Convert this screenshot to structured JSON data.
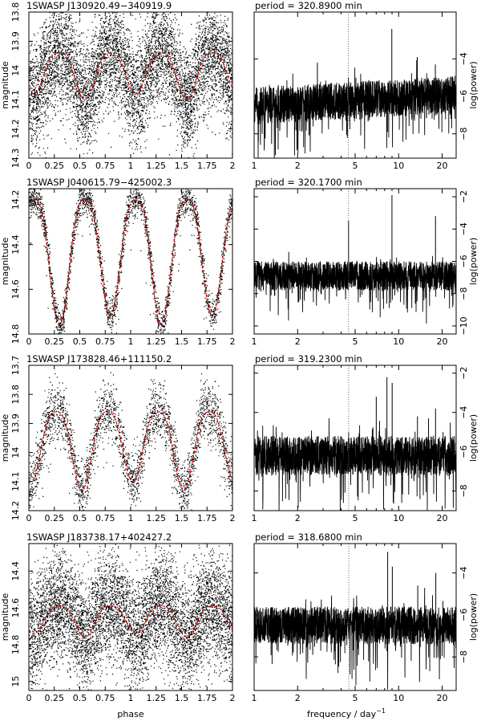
{
  "figure": {
    "xlabel_left": "phase",
    "xlabel_right": "frequency / day",
    "xlabel_right_exp": "−1"
  },
  "colors": {
    "points": "#000000",
    "model_curve": "#cc0000",
    "dotted_line": "#666666"
  },
  "chart_data": [
    {
      "type": "scatter",
      "title": "1SWASP J130920.49−340919.9",
      "xlabel": "",
      "ylabel": "magnitude",
      "xlim": [
        0,
        2
      ],
      "ylim": [
        14.3,
        13.8
      ],
      "y_inverted": true,
      "x_ticks": [
        "0",
        "0.25",
        "0.5",
        "0.75",
        "1",
        "1.25",
        "1.5",
        "1.75",
        "2"
      ],
      "y_ticks": [
        "13.8",
        "13.9",
        "14",
        "14.1",
        "14.2",
        "14.3"
      ],
      "series": [
        {
          "kind": "points",
          "density": "very high",
          "scatter_magnitude": 0.09
        },
        {
          "kind": "model",
          "style": "red dashed",
          "primary_minimum_phase": 0.55,
          "maxima_magnitude": 13.94,
          "primary_min_magnitude": 14.1,
          "secondary_min_magnitude": 14.08
        }
      ]
    },
    {
      "type": "line",
      "title": "period = 320.8900 min",
      "xlabel": "",
      "ylabel": "log(power)",
      "x_scale": "log",
      "xlim": [
        1,
        25
      ],
      "ylim": [
        -9.3,
        -1.5
      ],
      "x_ticks": [
        "1",
        "2",
        "5",
        "10",
        "20"
      ],
      "y_ticks": [
        "-4",
        "-6",
        "-8"
      ],
      "dotted_line_frequency": 4.49,
      "spikes": [
        {
          "frequency": 4.49,
          "log_power": -5.0
        },
        {
          "frequency": 8.97,
          "log_power": -2.4
        },
        {
          "frequency": 13.46,
          "log_power": -3.9
        },
        {
          "frequency": 17.95,
          "log_power": -4.3
        },
        {
          "frequency": 2.74,
          "log_power": -4.2
        }
      ],
      "noise": {
        "mean_log_power": -6.2,
        "spread": 1.0,
        "trend": "rises slightly toward high frequency"
      }
    },
    {
      "type": "scatter",
      "title": "1SWASP J040615.79−425002.3",
      "xlabel": "",
      "ylabel": "magnitude",
      "xlim": [
        0,
        2
      ],
      "ylim": [
        14.8,
        14.15
      ],
      "y_inverted": true,
      "x_ticks": [
        "0",
        "0.25",
        "0.5",
        "0.75",
        "1",
        "1.25",
        "1.5",
        "1.75",
        "2"
      ],
      "y_ticks": [
        "14.2",
        "14.4",
        "14.6",
        "14.8"
      ],
      "series": [
        {
          "kind": "points",
          "density": "medium",
          "scatter_magnitude": 0.035
        },
        {
          "kind": "model",
          "style": "red dashed",
          "primary_minimum_phase": 0.3,
          "maxima_magnitude": 14.2,
          "primary_min_magnitude": 14.76,
          "secondary_min_magnitude": 14.72
        }
      ]
    },
    {
      "type": "line",
      "title": "period = 320.1700 min",
      "xlabel": "",
      "ylabel": "log(power)",
      "x_scale": "log",
      "xlim": [
        1,
        25
      ],
      "ylim": [
        -10.5,
        -1.5
      ],
      "x_ticks": [
        "1",
        "2",
        "5",
        "10",
        "20"
      ],
      "y_ticks": [
        "-2",
        "-4",
        "-6",
        "-8",
        "-10"
      ],
      "dotted_line_frequency": 4.5,
      "spikes": [
        {
          "frequency": 4.5,
          "log_power": -3.5
        },
        {
          "frequency": 8.99,
          "log_power": -1.9
        },
        {
          "frequency": 17.99,
          "log_power": -3.2
        }
      ],
      "noise": {
        "mean_log_power": -6.9,
        "spread": 0.9,
        "trend": "flat"
      }
    },
    {
      "type": "scatter",
      "title": "1SWASP J173828.46+111150.2",
      "xlabel": "",
      "ylabel": "magnitude",
      "xlim": [
        0,
        2
      ],
      "ylim": [
        14.2,
        13.7
      ],
      "y_inverted": true,
      "x_ticks": [
        "0",
        "0.25",
        "0.5",
        "0.75",
        "1",
        "1.25",
        "1.5",
        "1.75",
        "2"
      ],
      "y_ticks": [
        "13.7",
        "13.8",
        "13.9",
        "14",
        "14.1",
        "14.2"
      ],
      "series": [
        {
          "kind": "points",
          "density": "medium",
          "scatter_magnitude": 0.05
        },
        {
          "kind": "model",
          "style": "red dashed",
          "primary_minimum_phase": 0.52,
          "maxima_magnitude": 13.86,
          "primary_min_magnitude": 14.13,
          "secondary_min_magnitude": 14.1
        }
      ]
    },
    {
      "type": "line",
      "title": "period = 319.2300 min",
      "xlabel": "",
      "ylabel": "log(power)",
      "x_scale": "log",
      "xlim": [
        1,
        25
      ],
      "ylim": [
        -9.0,
        -1.6
      ],
      "x_ticks": [
        "1",
        "2",
        "5",
        "10",
        "20"
      ],
      "y_ticks": [
        "-2",
        "-4",
        "-6",
        "-8"
      ],
      "dotted_line_frequency": 4.51,
      "spikes": [
        {
          "frequency": 4.51,
          "log_power": -5.0
        },
        {
          "frequency": 7.0,
          "log_power": -3.2
        },
        {
          "frequency": 8.3,
          "log_power": -2.2
        },
        {
          "frequency": 9.02,
          "log_power": -2.5
        },
        {
          "frequency": 13.5,
          "log_power": -4.2
        },
        {
          "frequency": 16.1,
          "log_power": -4.3
        },
        {
          "frequency": 18.0,
          "log_power": -3.8
        }
      ],
      "noise": {
        "mean_log_power": -6.2,
        "spread": 1.0,
        "trend": "flat"
      }
    },
    {
      "type": "scatter",
      "title": "1SWASP J183738.17+402427.2",
      "xlabel": "phase",
      "ylabel": "magnitude",
      "xlim": [
        0,
        2
      ],
      "ylim": [
        15.05,
        14.25
      ],
      "y_inverted": true,
      "x_ticks": [
        "0",
        "0.25",
        "0.5",
        "0.75",
        "1",
        "1.25",
        "1.5",
        "1.75",
        "2"
      ],
      "y_ticks": [
        "14.4",
        "14.6",
        "14.8",
        "15"
      ],
      "series": [
        {
          "kind": "points",
          "density": "very high",
          "scatter_magnitude": 0.15
        },
        {
          "kind": "model",
          "style": "red dashed",
          "primary_minimum_phase": 0.55,
          "maxima_magnitude": 14.59,
          "primary_min_magnitude": 14.76,
          "secondary_min_magnitude": 14.74
        }
      ]
    },
    {
      "type": "line",
      "title": "period = 318.6800 min",
      "xlabel": "frequency / day",
      "ylabel": "log(power)",
      "x_scale": "log",
      "xlim": [
        1,
        25
      ],
      "ylim": [
        -9.6,
        -2.6
      ],
      "x_ticks": [
        "1",
        "2",
        "5",
        "10",
        "20"
      ],
      "y_ticks": [
        "-4",
        "-6",
        "-8"
      ],
      "dotted_line_frequency": 4.52,
      "spikes": [
        {
          "frequency": 4.52,
          "log_power": -6.0
        },
        {
          "frequency": 8.4,
          "log_power": -3.0
        },
        {
          "frequency": 9.04,
          "log_power": -3.7
        },
        {
          "frequency": 13.56,
          "log_power": -4.6
        },
        {
          "frequency": 18.08,
          "log_power": -4.0
        }
      ],
      "noise": {
        "mean_log_power": -6.5,
        "spread": 0.9,
        "trend": "flat"
      }
    }
  ]
}
